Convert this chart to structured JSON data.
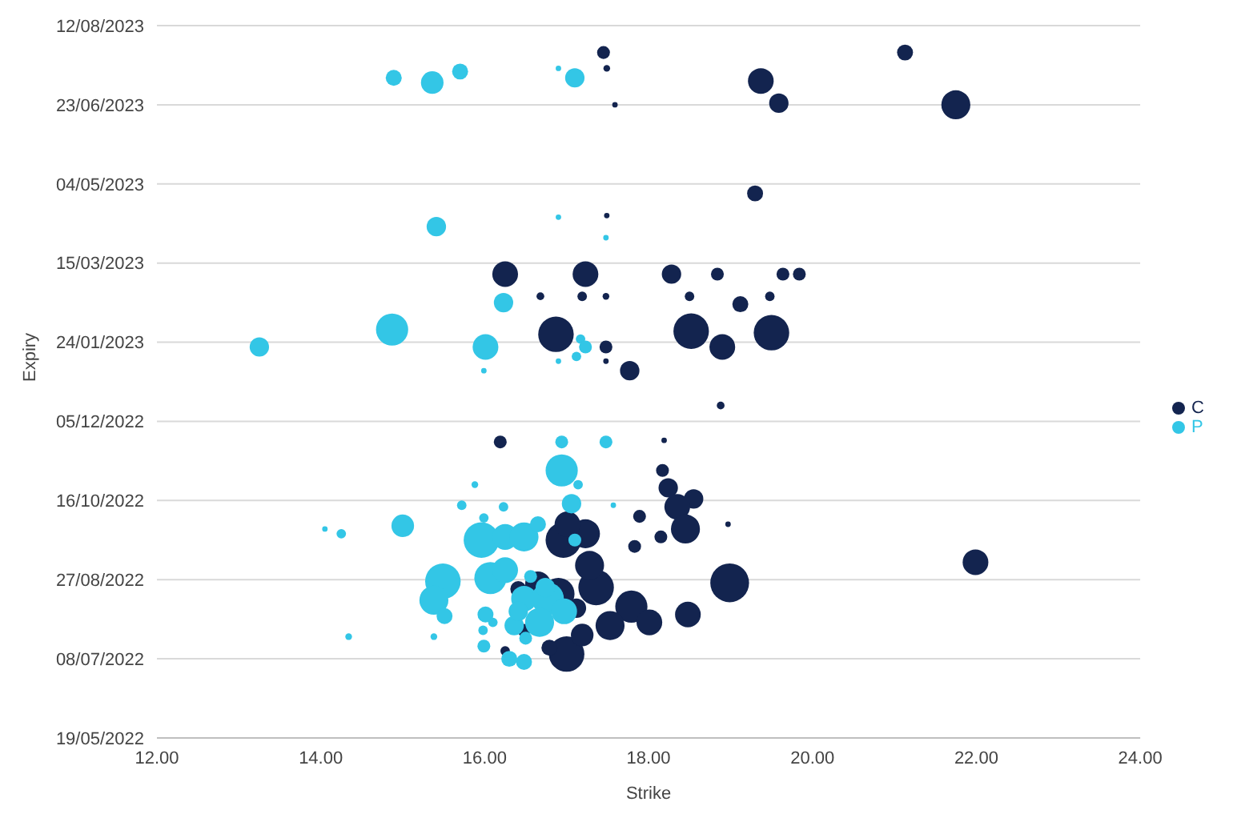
{
  "chart_data": {
    "type": "bubble",
    "orientation": "horizontal",
    "xlabel": "Strike",
    "ylabel": "Expiry",
    "xlim": [
      12,
      24
    ],
    "xticks": [
      {
        "value": 12,
        "label": "12.00"
      },
      {
        "value": 14,
        "label": "14.00"
      },
      {
        "value": 16,
        "label": "16.00"
      },
      {
        "value": 18,
        "label": "18.00"
      },
      {
        "value": 20,
        "label": "20.00"
      },
      {
        "value": 22,
        "label": "22.00"
      },
      {
        "value": 24,
        "label": "24.00"
      }
    ],
    "ylim": [
      "2022-05-19",
      "2023-08-12"
    ],
    "yticks": [
      {
        "value": "2022-05-19",
        "label": "19/05/2022"
      },
      {
        "value": "2022-07-08",
        "label": "08/07/2022"
      },
      {
        "value": "2022-08-27",
        "label": "27/08/2022"
      },
      {
        "value": "2022-10-16",
        "label": "16/10/2022"
      },
      {
        "value": "2022-12-05",
        "label": "05/12/2022"
      },
      {
        "value": "2023-01-24",
        "label": "24/01/2023"
      },
      {
        "value": "2023-03-15",
        "label": "15/03/2023"
      },
      {
        "value": "2023-05-04",
        "label": "04/05/2023"
      },
      {
        "value": "2023-06-23",
        "label": "23/06/2023"
      },
      {
        "value": "2023-08-12",
        "label": "12/08/2023"
      }
    ],
    "grid": "y",
    "legend": "right",
    "marker": "circle",
    "series": [
      {
        "name": "C",
        "color": "#13244f",
        "values": [
          17.45,
          17.49,
          17.59,
          19.37,
          19.59,
          21.13,
          21.75,
          19.3,
          17.49,
          16.25,
          17.23,
          18.28,
          18.84,
          19.64,
          19.84,
          16.68,
          17.19,
          17.48,
          18.5,
          19.12,
          19.48,
          16.87,
          18.52,
          18.9,
          19.5,
          17.48,
          17.48,
          17.77,
          18.88,
          16.19,
          18.19,
          18.17,
          18.24,
          18.55,
          18.35,
          18.45,
          17.89,
          18.15,
          17.83,
          18.97,
          18.99,
          18.48,
          21.99,
          17.79,
          18.01,
          17.53,
          17.36,
          17.28,
          17.23,
          16.96,
          17.01,
          16.65,
          16.9,
          17.0,
          17.19,
          16.41,
          16.48,
          16.79,
          16.25,
          17.12
        ],
        "x": [
          "2023-07-26",
          "2023-07-16",
          "2023-06-23",
          "2023-07-08",
          "2023-06-24",
          "2023-07-26",
          "2023-06-23",
          "2023-04-28",
          "2023-04-14",
          "2023-03-08",
          "2023-03-08",
          "2023-03-08",
          "2023-03-08",
          "2023-03-08",
          "2023-03-08",
          "2023-02-22",
          "2023-02-22",
          "2023-02-22",
          "2023-02-22",
          "2023-02-17",
          "2023-02-22",
          "2023-01-29",
          "2023-01-31",
          "2023-01-21",
          "2023-01-30",
          "2023-01-21",
          "2023-01-12",
          "2023-01-06",
          "2022-12-15",
          "2022-11-22",
          "2022-11-23",
          "2022-11-04",
          "2022-10-24",
          "2022-10-17",
          "2022-10-12",
          "2022-09-28",
          "2022-10-06",
          "2022-09-23",
          "2022-09-17",
          "2022-10-01",
          "2022-08-25",
          "2022-08-05",
          "2022-09-07",
          "2022-08-10",
          "2022-07-31",
          "2022-07-29",
          "2022-08-22",
          "2022-09-05",
          "2022-09-25",
          "2022-09-21",
          "2022-10-01",
          "2022-08-24",
          "2022-08-18",
          "2022-07-11",
          "2022-07-23",
          "2022-08-21",
          "2022-07-26",
          "2022-07-15",
          "2022-07-13",
          "2022-08-09"
        ],
        "sizes": [
          0.11,
          0.03,
          0.02,
          0.44,
          0.25,
          0.17,
          0.56,
          0.17,
          0.02,
          0.44,
          0.44,
          0.25,
          0.11,
          0.11,
          0.11,
          0.04,
          0.06,
          0.03,
          0.06,
          0.17,
          0.06,
          0.84,
          0.84,
          0.44,
          0.84,
          0.11,
          0.02,
          0.25,
          0.04,
          0.11,
          0.02,
          0.11,
          0.25,
          0.25,
          0.44,
          0.56,
          0.11,
          0.11,
          0.11,
          0.02,
          1,
          0.44,
          0.44,
          0.69,
          0.44,
          0.56,
          0.84,
          0.56,
          0.56,
          0.84,
          0.44,
          0.44,
          0.69,
          0.84,
          0.34,
          0.17,
          0.11,
          0.17,
          0.06,
          0.25
        ]
      },
      {
        "name": "P",
        "color": "#33c6e6",
        "values": [
          14.89,
          15.36,
          15.7,
          16.9,
          17.1,
          15.41,
          16.9,
          17.48,
          16.23,
          14.87,
          13.25,
          16.01,
          17.17,
          17.23,
          17.12,
          16.9,
          15.99,
          16.94,
          17.48,
          15.0,
          14.25,
          14.05,
          14.34,
          15.38,
          15.49,
          15.38,
          15.51,
          15.72,
          15.88,
          15.99,
          15.96,
          16.25,
          16.23,
          16.48,
          16.65,
          16.07,
          16.25,
          16.01,
          15.98,
          16.1,
          15.99,
          16.3,
          16.36,
          16.48,
          16.41,
          16.77,
          16.67,
          16.97,
          16.94,
          17.06,
          17.14,
          16.74,
          17.1,
          16.56,
          17.57,
          16.5,
          16.48
        ],
        "x": [
          "2023-07-10",
          "2023-07-07",
          "2023-07-14",
          "2023-07-16",
          "2023-07-10",
          "2023-04-07",
          "2023-04-13",
          "2023-03-31",
          "2023-02-18",
          "2023-02-01",
          "2023-01-21",
          "2023-01-21",
          "2023-01-26",
          "2023-01-21",
          "2023-01-15",
          "2023-01-12",
          "2023-01-06",
          "2022-11-22",
          "2022-11-22",
          "2022-09-30",
          "2022-09-25",
          "2022-09-28",
          "2022-07-22",
          "2022-07-22",
          "2022-08-26",
          "2022-08-14",
          "2022-08-04",
          "2022-10-13",
          "2022-10-26",
          "2022-10-05",
          "2022-09-21",
          "2022-09-23",
          "2022-10-12",
          "2022-09-23",
          "2022-10-01",
          "2022-08-28",
          "2022-09-02",
          "2022-08-05",
          "2022-07-26",
          "2022-07-31",
          "2022-07-16",
          "2022-07-08",
          "2022-07-29",
          "2022-08-15",
          "2022-08-07",
          "2022-08-15",
          "2022-07-31",
          "2022-08-07",
          "2022-11-04",
          "2022-10-14",
          "2022-10-26",
          "2022-08-22",
          "2022-09-21",
          "2022-08-29",
          "2022-10-13",
          "2022-07-21",
          "2022-07-06"
        ],
        "sizes": [
          0.17,
          0.34,
          0.17,
          0.02,
          0.25,
          0.25,
          0.02,
          0.02,
          0.25,
          0.69,
          0.25,
          0.44,
          0.06,
          0.11,
          0.06,
          0.02,
          0.02,
          0.11,
          0.11,
          0.34,
          0.06,
          0.02,
          0.03,
          0.03,
          0.84,
          0.56,
          0.17,
          0.06,
          0.03,
          0.06,
          0.84,
          0.44,
          0.06,
          0.56,
          0.17,
          0.69,
          0.44,
          0.17,
          0.06,
          0.06,
          0.11,
          0.17,
          0.25,
          0.44,
          0.25,
          0.69,
          0.56,
          0.44,
          0.69,
          0.25,
          0.06,
          0.25,
          0.11,
          0.11,
          0.02,
          0.11,
          0.17
        ]
      }
    ]
  }
}
